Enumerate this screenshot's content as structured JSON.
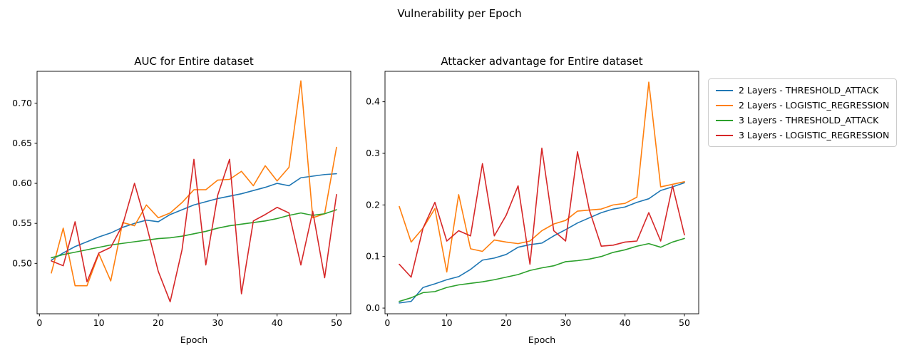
{
  "figure": {
    "title": "Vulnerability per Epoch",
    "background": "#ffffff"
  },
  "legend": {
    "position": "outside-right",
    "entries": [
      {
        "label": "2 Layers - THRESHOLD_ATTACK",
        "color": "#1f77b4"
      },
      {
        "label": "2 Layers - LOGISTIC_REGRESSION",
        "color": "#ff7f0e"
      },
      {
        "label": "3 Layers - THRESHOLD_ATTACK",
        "color": "#2ca02c"
      },
      {
        "label": "3 Layers - LOGISTIC_REGRESSION",
        "color": "#d62728"
      }
    ]
  },
  "chart_data": [
    {
      "type": "line",
      "title": "AUC for Entire dataset",
      "xlabel": "Epoch",
      "ylabel": "",
      "grid": false,
      "x": [
        2,
        4,
        6,
        8,
        10,
        12,
        14,
        16,
        18,
        20,
        22,
        24,
        26,
        28,
        30,
        32,
        34,
        36,
        38,
        40,
        42,
        44,
        46,
        48,
        50
      ],
      "xlim": [
        -0.4,
        52.4
      ],
      "ylim": [
        0.437,
        0.74
      ],
      "xticks": [
        0,
        10,
        20,
        30,
        40,
        50
      ],
      "xtick_labels": [
        "0",
        "10",
        "20",
        "30",
        "40",
        "50"
      ],
      "yticks": [
        0.5,
        0.55,
        0.6,
        0.65,
        0.7
      ],
      "ytick_labels": [
        "0.50",
        "0.55",
        "0.60",
        "0.65",
        "0.70"
      ],
      "series": [
        {
          "name": "2 Layers - THRESHOLD_ATTACK",
          "color": "#1f77b4",
          "values": [
            0.504,
            0.513,
            0.521,
            0.527,
            0.533,
            0.538,
            0.545,
            0.55,
            0.554,
            0.552,
            0.561,
            0.567,
            0.573,
            0.577,
            0.581,
            0.584,
            0.587,
            0.591,
            0.595,
            0.6,
            0.597,
            0.607,
            0.609,
            0.611,
            0.612
          ]
        },
        {
          "name": "2 Layers - LOGISTIC_REGRESSION",
          "color": "#ff7f0e",
          "values": [
            0.488,
            0.544,
            0.472,
            0.472,
            0.512,
            0.478,
            0.551,
            0.547,
            0.573,
            0.557,
            0.563,
            0.576,
            0.592,
            0.592,
            0.604,
            0.605,
            0.615,
            0.597,
            0.622,
            0.603,
            0.62,
            0.728,
            0.557,
            0.562,
            0.645
          ]
        },
        {
          "name": "3 Layers - THRESHOLD_ATTACK",
          "color": "#2ca02c",
          "values": [
            0.507,
            0.511,
            0.514,
            0.517,
            0.52,
            0.523,
            0.525,
            0.527,
            0.529,
            0.531,
            0.532,
            0.534,
            0.537,
            0.54,
            0.544,
            0.547,
            0.549,
            0.551,
            0.553,
            0.556,
            0.56,
            0.563,
            0.56,
            0.562,
            0.567
          ]
        },
        {
          "name": "3 Layers - LOGISTIC_REGRESSION",
          "color": "#d62728",
          "values": [
            0.503,
            0.497,
            0.552,
            0.477,
            0.513,
            0.52,
            0.548,
            0.6,
            0.548,
            0.49,
            0.452,
            0.517,
            0.63,
            0.498,
            0.585,
            0.63,
            0.462,
            0.553,
            0.561,
            0.57,
            0.563,
            0.498,
            0.565,
            0.482,
            0.586
          ]
        }
      ]
    },
    {
      "type": "line",
      "title": "Attacker advantage for Entire dataset",
      "xlabel": "Epoch",
      "ylabel": "",
      "grid": false,
      "x": [
        2,
        4,
        6,
        8,
        10,
        12,
        14,
        16,
        18,
        20,
        22,
        24,
        26,
        28,
        30,
        32,
        34,
        36,
        38,
        40,
        42,
        44,
        46,
        48,
        50
      ],
      "xlim": [
        -0.4,
        52.4
      ],
      "ylim": [
        -0.011,
        0.459
      ],
      "xticks": [
        0,
        10,
        20,
        30,
        40,
        50
      ],
      "xtick_labels": [
        "0",
        "10",
        "20",
        "30",
        "40",
        "50"
      ],
      "yticks": [
        0.0,
        0.1,
        0.2,
        0.3,
        0.4
      ],
      "ytick_labels": [
        "0.0",
        "0.1",
        "0.2",
        "0.3",
        "0.4"
      ],
      "series": [
        {
          "name": "2 Layers - THRESHOLD_ATTACK",
          "color": "#1f77b4",
          "values": [
            0.01,
            0.013,
            0.04,
            0.047,
            0.055,
            0.061,
            0.075,
            0.093,
            0.097,
            0.104,
            0.118,
            0.123,
            0.126,
            0.14,
            0.152,
            0.165,
            0.175,
            0.185,
            0.192,
            0.196,
            0.205,
            0.212,
            0.228,
            0.235,
            0.243
          ]
        },
        {
          "name": "2 Layers - LOGISTIC_REGRESSION",
          "color": "#ff7f0e",
          "values": [
            0.197,
            0.128,
            0.155,
            0.193,
            0.07,
            0.22,
            0.115,
            0.11,
            0.132,
            0.128,
            0.125,
            0.13,
            0.15,
            0.163,
            0.17,
            0.188,
            0.19,
            0.192,
            0.2,
            0.203,
            0.215,
            0.438,
            0.235,
            0.24,
            0.245
          ]
        },
        {
          "name": "3 Layers - THRESHOLD_ATTACK",
          "color": "#2ca02c",
          "values": [
            0.013,
            0.02,
            0.03,
            0.032,
            0.04,
            0.045,
            0.048,
            0.051,
            0.055,
            0.06,
            0.065,
            0.073,
            0.078,
            0.082,
            0.09,
            0.092,
            0.095,
            0.1,
            0.108,
            0.113,
            0.12,
            0.125,
            0.118,
            0.128,
            0.135
          ]
        },
        {
          "name": "3 Layers - LOGISTIC_REGRESSION",
          "color": "#d62728",
          "values": [
            0.085,
            0.06,
            0.155,
            0.205,
            0.13,
            0.15,
            0.14,
            0.28,
            0.14,
            0.18,
            0.237,
            0.085,
            0.31,
            0.15,
            0.13,
            0.303,
            0.19,
            0.12,
            0.122,
            0.128,
            0.13,
            0.185,
            0.13,
            0.237,
            0.142
          ]
        }
      ]
    }
  ]
}
